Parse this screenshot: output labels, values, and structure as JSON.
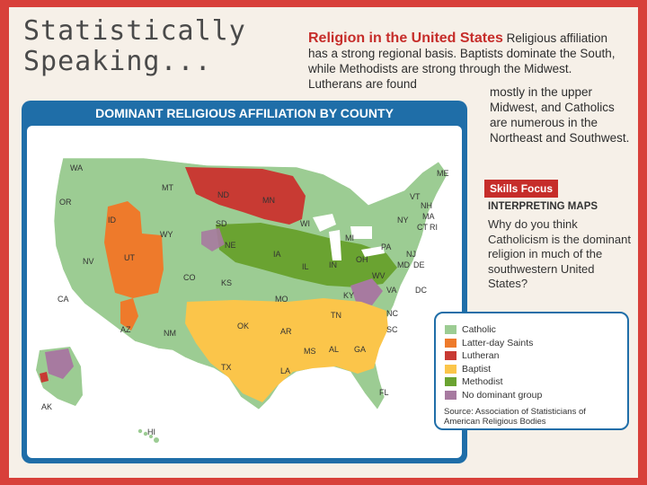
{
  "brand": {
    "line1": "Statistically",
    "line2": "Speaking..."
  },
  "headline": {
    "title": "Religion in the United States",
    "body_main": "Religious affiliation has a strong regional basis. Baptists dominate the South, while Methodists are strong through the Midwest. Lutherans are found",
    "body_cont": "mostly in the upper Midwest, and Catholics are numerous in the Northeast and Southwest."
  },
  "map": {
    "title": "DOMINANT RELIGIOUS AFFILIATION BY COUNTY",
    "states": [
      "WA",
      "OR",
      "ID",
      "MT",
      "ND",
      "MN",
      "SD",
      "WY",
      "NV",
      "CA",
      "UT",
      "CO",
      "NE",
      "KS",
      "IA",
      "WI",
      "MI",
      "NY",
      "VT",
      "NH",
      "ME",
      "MA",
      "RI",
      "CT",
      "PA",
      "NJ",
      "DE",
      "MD",
      "OH",
      "IN",
      "IL",
      "MO",
      "KY",
      "WV",
      "VA",
      "DC",
      "OK",
      "AR",
      "TN",
      "NC",
      "SC",
      "GA",
      "AL",
      "MS",
      "LA",
      "TX",
      "NM",
      "AZ",
      "FL",
      "AK",
      "HI"
    ]
  },
  "skills": {
    "badge": "Skills Focus",
    "subtitle": "INTERPRETING MAPS",
    "question": "Why do you think Catholicism is the dominant religion in much of the southwestern United States?"
  },
  "legend": {
    "items": [
      {
        "label": "Catholic",
        "color": "#9ccc93"
      },
      {
        "label": "Latter-day Saints",
        "color": "#ee7a2b"
      },
      {
        "label": "Lutheran",
        "color": "#c83a33"
      },
      {
        "label": "Baptist",
        "color": "#fbc54a"
      },
      {
        "label": "Methodist",
        "color": "#6aa331"
      },
      {
        "label": "No dominant group",
        "color": "#a77aa0"
      }
    ],
    "source": "Source: Association of Statisticians of American Religious Bodies"
  },
  "colors": {
    "border": "#d8403a",
    "panel": "#1f6ea8",
    "accent": "#c62d2a"
  }
}
